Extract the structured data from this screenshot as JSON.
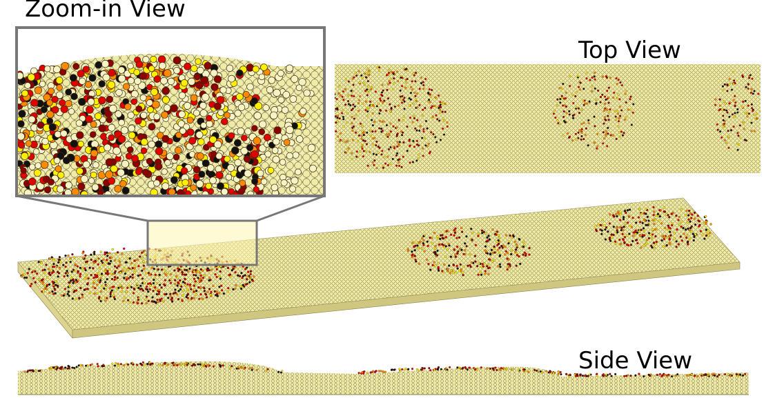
{
  "labels": {
    "zoom_in_view": "Zoom-in View",
    "top_view": "Top View",
    "side_view": "Side View"
  },
  "colors": {
    "sand": "#f0eba0",
    "sand_light": "#f7f3c3",
    "sand_dark": "#d9d28a",
    "grain_outline": "#5a5530",
    "frame_gray": "#777777",
    "highlight_yellow": "#ffef00",
    "orange": "#ff8a00",
    "red": "#e00000",
    "dark_red": "#8b0000",
    "black": "#111111"
  }
}
